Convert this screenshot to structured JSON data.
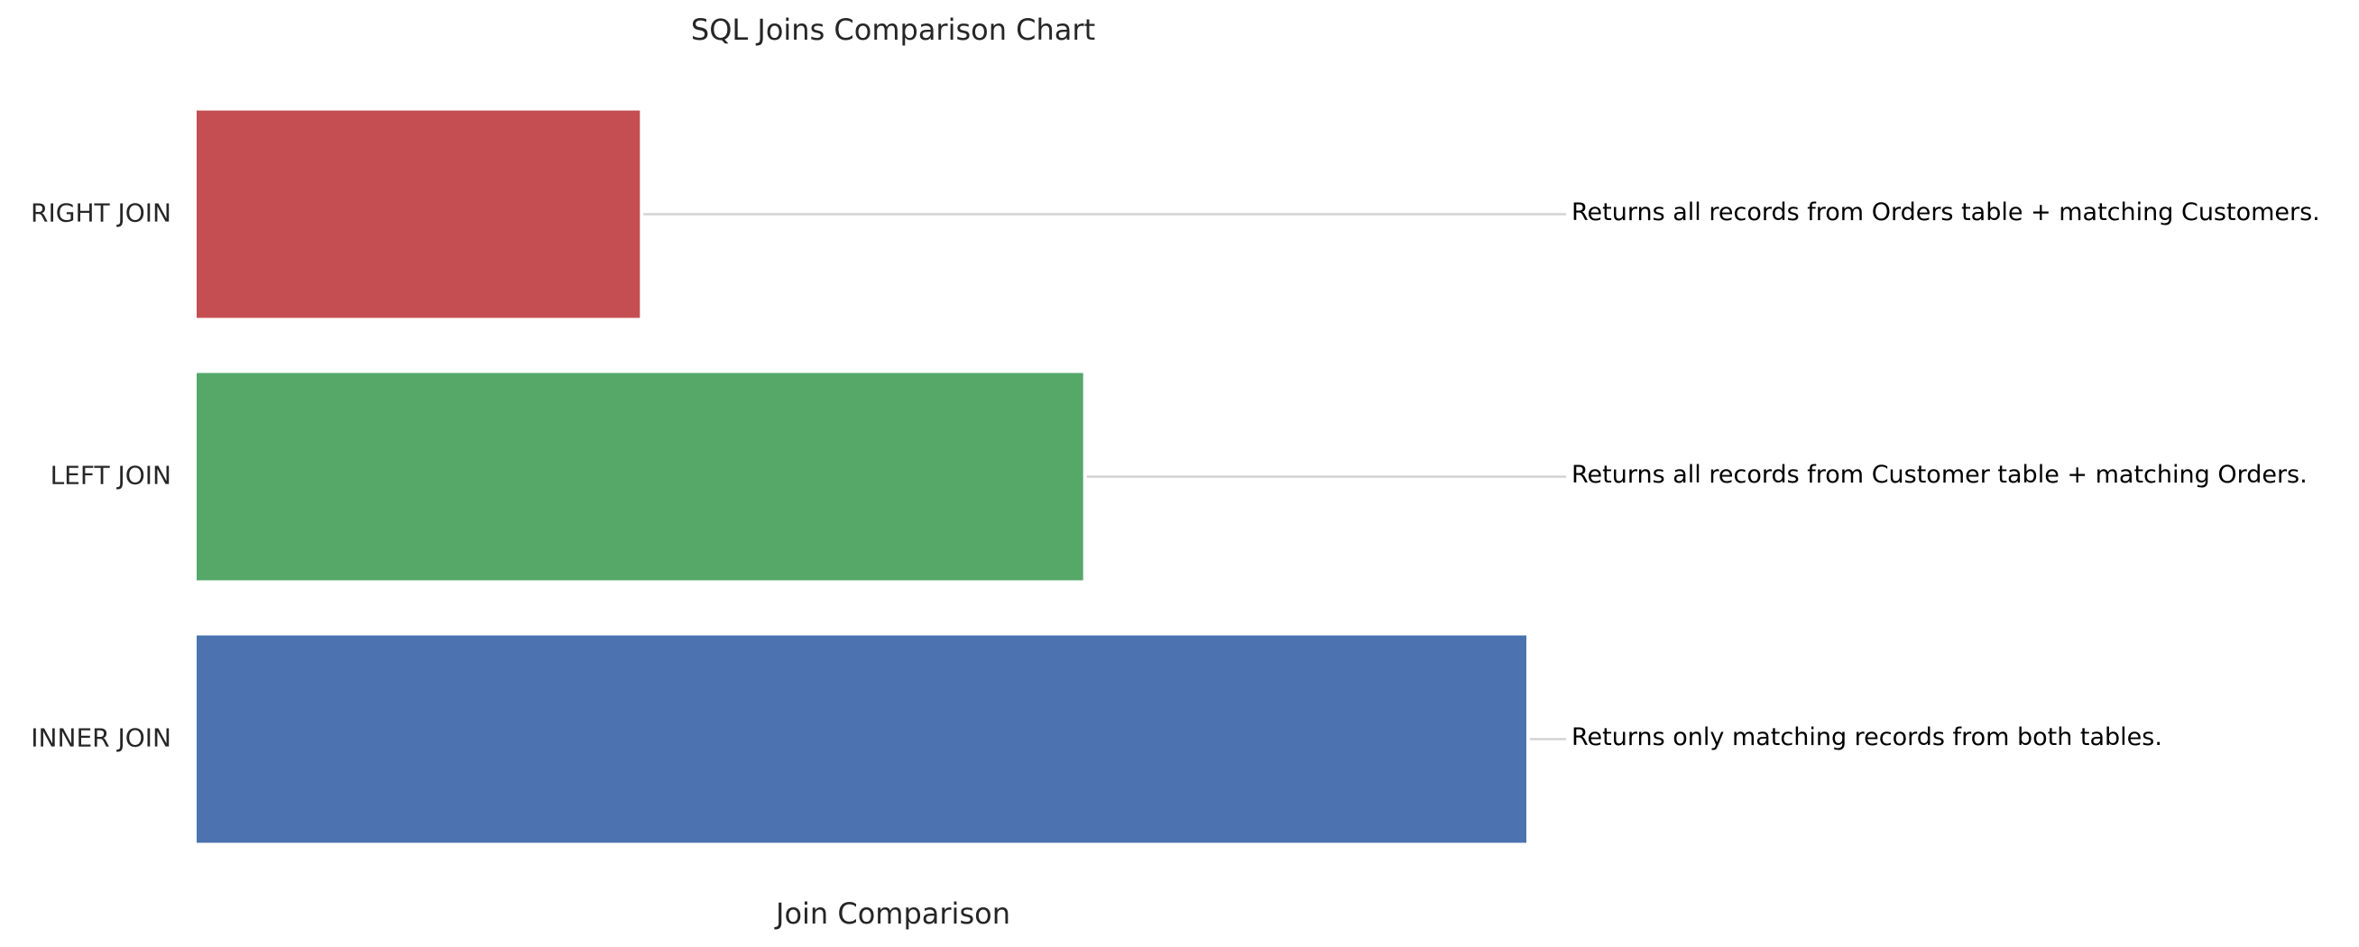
{
  "chart_data": {
    "type": "bar",
    "orientation": "horizontal",
    "title": "SQL Joins Comparison Chart",
    "xlabel": "Join Comparison",
    "ylabel": "",
    "categories": [
      "INNER JOIN",
      "LEFT JOIN",
      "RIGHT JOIN"
    ],
    "values": [
      3,
      2,
      1
    ],
    "colors": [
      "#4c72b0",
      "#55a868",
      "#c44e52"
    ],
    "annotations": [
      "Returns only matching records from both tables.",
      "Returns all records from Customer table + matching Orders.",
      "Returns all records from Orders table + matching Customers."
    ],
    "xlim": [
      0,
      3
    ],
    "grid": false,
    "x_ticks_visible": false
  }
}
